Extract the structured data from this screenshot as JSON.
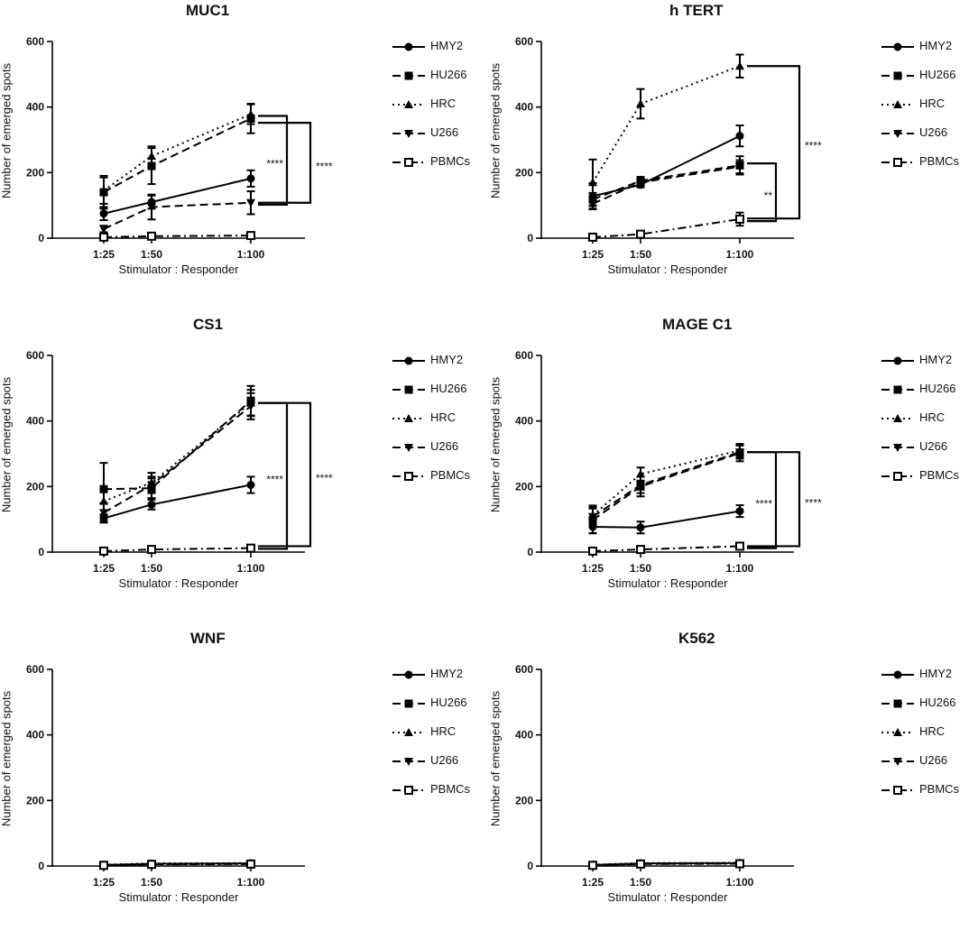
{
  "legend": [
    {
      "name": "HMY2",
      "marker": "circle",
      "dash": "solid"
    },
    {
      "name": "HU266",
      "marker": "square",
      "dash": "dashed"
    },
    {
      "name": "HRC",
      "marker": "triangle-up",
      "dash": "dotted"
    },
    {
      "name": "U266",
      "marker": "triangle-down",
      "dash": "dashed"
    },
    {
      "name": "PBMCs",
      "marker": "open-square",
      "dash": "dashdot"
    }
  ],
  "chart_data": [
    {
      "type": "line",
      "title": "MUC1",
      "xlabel": "Stimulator : Responder",
      "ylabel": "Number of emerged spots",
      "categories": [
        "1:25",
        "1:50",
        "1:100"
      ],
      "ylim": [
        0,
        600
      ],
      "yticks": [
        0,
        200,
        400,
        600
      ],
      "series": [
        {
          "name": "HMY2",
          "values": [
            75,
            110,
            182
          ],
          "errors": [
            20,
            20,
            25
          ]
        },
        {
          "name": "HU266",
          "values": [
            140,
            220,
            365
          ],
          "errors": [
            50,
            55,
            45
          ]
        },
        {
          "name": "HRC",
          "values": [
            145,
            250,
            378
          ],
          "errors": [
            40,
            30,
            30
          ]
        },
        {
          "name": "U266",
          "values": [
            28,
            95,
            108
          ],
          "errors": [
            10,
            38,
            35
          ]
        },
        {
          "name": "PBMCs",
          "values": [
            3,
            6,
            8
          ],
          "errors": [
            2,
            3,
            3
          ]
        }
      ],
      "annotations": [
        {
          "text": "****",
          "x1": "1:100",
          "y1": 373,
          "x2": "1:100",
          "y2": 102,
          "bracket": "inner"
        },
        {
          "text": "****",
          "x1": "1:100",
          "y1": 352,
          "x2": "1:100",
          "y2": 108,
          "bracket": "outer"
        }
      ]
    },
    {
      "type": "line",
      "title": "h TERT",
      "xlabel": "Stimulator : Responder",
      "ylabel": "Number of emerged spots",
      "categories": [
        "1:25",
        "1:50",
        "1:100"
      ],
      "ylim": [
        0,
        600
      ],
      "yticks": [
        0,
        200,
        400,
        600
      ],
      "series": [
        {
          "name": "HMY2",
          "values": [
            128,
            163,
            312
          ],
          "errors": [
            40,
            8,
            32
          ]
        },
        {
          "name": "HU266",
          "values": [
            118,
            175,
            222
          ],
          "errors": [
            20,
            12,
            28
          ]
        },
        {
          "name": "HRC",
          "values": [
            170,
            410,
            525
          ],
          "errors": [
            70,
            45,
            35
          ]
        },
        {
          "name": "U266",
          "values": [
            105,
            170,
            218
          ],
          "errors": [
            15,
            10,
            20
          ]
        },
        {
          "name": "PBMCs",
          "values": [
            3,
            12,
            58
          ],
          "errors": [
            3,
            10,
            20
          ]
        }
      ],
      "annotations": [
        {
          "text": "****",
          "x1": "1:100",
          "y1": 525,
          "x2": "1:100",
          "y2": 60,
          "bracket": "outer"
        },
        {
          "text": "**",
          "x1": "1:100",
          "y1": 228,
          "x2": "1:100",
          "y2": 52,
          "bracket": "inner"
        }
      ]
    },
    {
      "type": "line",
      "title": "CS1",
      "xlabel": "Stimulator : Responder",
      "ylabel": "Number of emerged spots",
      "categories": [
        "1:25",
        "1:50",
        "1:100"
      ],
      "ylim": [
        0,
        600
      ],
      "yticks": [
        0,
        200,
        400,
        600
      ],
      "series": [
        {
          "name": "HMY2",
          "values": [
            103,
            145,
            205
          ],
          "errors": [
            10,
            15,
            25
          ]
        },
        {
          "name": "HU266",
          "values": [
            192,
            195,
            462
          ],
          "errors": [
            80,
            30,
            45
          ]
        },
        {
          "name": "HRC",
          "values": [
            155,
            212,
            455
          ],
          "errors": [
            40,
            30,
            40
          ]
        },
        {
          "name": "U266",
          "values": [
            120,
            205,
            445
          ],
          "errors": [
            30,
            25,
            40
          ]
        },
        {
          "name": "PBMCs",
          "values": [
            3,
            8,
            12
          ],
          "errors": [
            2,
            3,
            5
          ]
        }
      ],
      "annotations": [
        {
          "text": "****",
          "x1": "1:100",
          "y1": 455,
          "x2": "1:100",
          "y2": 10,
          "bracket": "inner"
        },
        {
          "text": "****",
          "x1": "1:100",
          "y1": 455,
          "x2": "1:100",
          "y2": 18,
          "bracket": "outer"
        }
      ]
    },
    {
      "type": "line",
      "title": "MAGE C1",
      "xlabel": "Stimulator : Responder",
      "ylabel": "Number of emerged spots",
      "categories": [
        "1:25",
        "1:50",
        "1:100"
      ],
      "ylim": [
        0,
        600
      ],
      "yticks": [
        0,
        200,
        400,
        600
      ],
      "series": [
        {
          "name": "HMY2",
          "values": [
            77,
            75,
            125
          ],
          "errors": [
            20,
            18,
            18
          ]
        },
        {
          "name": "HU266",
          "values": [
            98,
            200,
            302
          ],
          "errors": [
            40,
            30,
            25
          ]
        },
        {
          "name": "HRC",
          "values": [
            112,
            238,
            310
          ],
          "errors": [
            30,
            20,
            20
          ]
        },
        {
          "name": "U266",
          "values": [
            108,
            205,
            305
          ],
          "errors": [
            25,
            25,
            20
          ]
        },
        {
          "name": "PBMCs",
          "values": [
            3,
            8,
            18
          ],
          "errors": [
            2,
            3,
            8
          ]
        }
      ],
      "annotations": [
        {
          "text": "****",
          "x1": "1:100",
          "y1": 305,
          "x2": "1:100",
          "y2": 12,
          "bracket": "inner"
        },
        {
          "text": "****",
          "x1": "1:100",
          "y1": 305,
          "x2": "1:100",
          "y2": 18,
          "bracket": "outer"
        }
      ]
    },
    {
      "type": "line",
      "title": "WNF",
      "xlabel": "Stimulator : Responder",
      "ylabel": "Number of emerged spots",
      "categories": [
        "1:25",
        "1:50",
        "1:100"
      ],
      "ylim": [
        0,
        600
      ],
      "yticks": [
        0,
        200,
        400,
        600
      ],
      "series": [
        {
          "name": "HMY2",
          "values": [
            3,
            7,
            8
          ],
          "errors": [
            2,
            3,
            5
          ]
        },
        {
          "name": "HU266",
          "values": [
            3,
            6,
            7
          ],
          "errors": [
            2,
            3,
            4
          ]
        },
        {
          "name": "HRC",
          "values": [
            4,
            8,
            9
          ],
          "errors": [
            2,
            3,
            4
          ]
        },
        {
          "name": "U266",
          "values": [
            3,
            6,
            7
          ],
          "errors": [
            2,
            3,
            4
          ]
        },
        {
          "name": "PBMCs",
          "values": [
            2,
            5,
            6
          ],
          "errors": [
            2,
            3,
            3
          ]
        }
      ],
      "annotations": []
    },
    {
      "type": "line",
      "title": "K562",
      "xlabel": "Stimulator : Responder",
      "ylabel": "Number of emerged spots",
      "categories": [
        "1:25",
        "1:50",
        "1:100"
      ],
      "ylim": [
        0,
        600
      ],
      "yticks": [
        0,
        200,
        400,
        600
      ],
      "series": [
        {
          "name": "HMY2",
          "values": [
            3,
            8,
            9
          ],
          "errors": [
            2,
            3,
            4
          ]
        },
        {
          "name": "HU266",
          "values": [
            3,
            7,
            8
          ],
          "errors": [
            2,
            3,
            4
          ]
        },
        {
          "name": "HRC",
          "values": [
            4,
            9,
            10
          ],
          "errors": [
            2,
            3,
            4
          ]
        },
        {
          "name": "U266",
          "values": [
            3,
            7,
            8
          ],
          "errors": [
            2,
            3,
            4
          ]
        },
        {
          "name": "PBMCs",
          "values": [
            2,
            6,
            7
          ],
          "errors": [
            2,
            3,
            3
          ]
        }
      ],
      "annotations": []
    }
  ]
}
